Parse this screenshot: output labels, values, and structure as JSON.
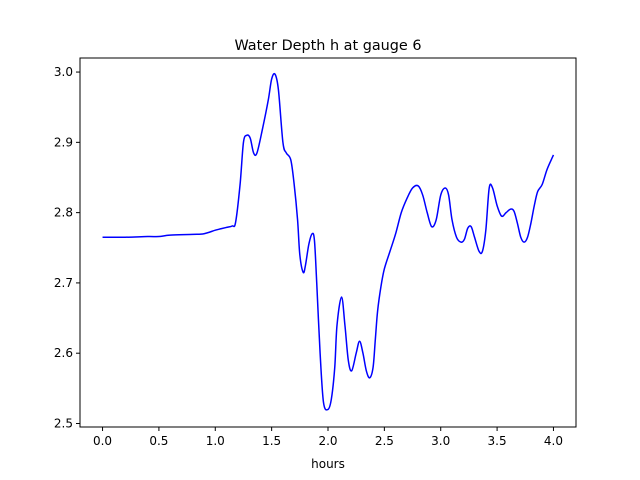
{
  "chart_data": {
    "type": "line",
    "title": "Water Depth h at gauge 6",
    "xlabel": "hours",
    "ylabel": "",
    "xlim": [
      -0.2,
      4.2
    ],
    "ylim": [
      2.495,
      3.02
    ],
    "xticks": [
      0.0,
      0.5,
      1.0,
      1.5,
      2.0,
      2.5,
      3.0,
      3.5,
      4.0
    ],
    "xtick_labels": [
      "0.0",
      "0.5",
      "1.0",
      "1.5",
      "2.0",
      "2.5",
      "3.0",
      "3.5",
      "4.0"
    ],
    "yticks": [
      2.5,
      2.6,
      2.7,
      2.8,
      2.9,
      3.0
    ],
    "ytick_labels": [
      "2.5",
      "2.6",
      "2.7",
      "2.8",
      "2.9",
      "3.0"
    ],
    "grid": false,
    "legend": "none",
    "series": [
      {
        "color": "#0000ff",
        "x": [
          0.0,
          0.2,
          0.4,
          0.5,
          0.6,
          0.8,
          0.9,
          1.0,
          1.05,
          1.1,
          1.15,
          1.18,
          1.22,
          1.25,
          1.28,
          1.31,
          1.34,
          1.37,
          1.42,
          1.47,
          1.5,
          1.53,
          1.56,
          1.6,
          1.63,
          1.67,
          1.7,
          1.73,
          1.75,
          1.78,
          1.8,
          1.83,
          1.86,
          1.88,
          1.9,
          1.93,
          1.96,
          2.0,
          2.03,
          2.06,
          2.08,
          2.12,
          2.15,
          2.18,
          2.21,
          2.25,
          2.28,
          2.31,
          2.34,
          2.37,
          2.4,
          2.42,
          2.44,
          2.47,
          2.5,
          2.55,
          2.6,
          2.65,
          2.7,
          2.75,
          2.8,
          2.84,
          2.88,
          2.92,
          2.96,
          3.0,
          3.04,
          3.07,
          3.1,
          3.14,
          3.18,
          3.21,
          3.24,
          3.27,
          3.3,
          3.34,
          3.37,
          3.4,
          3.43,
          3.46,
          3.5,
          3.54,
          3.58,
          3.62,
          3.65,
          3.68,
          3.71,
          3.74,
          3.77,
          3.8,
          3.83,
          3.86,
          3.9,
          3.94,
          3.98,
          4.0
        ],
        "y": [
          2.765,
          2.765,
          2.766,
          2.766,
          2.768,
          2.769,
          2.77,
          2.775,
          2.777,
          2.779,
          2.781,
          2.786,
          2.84,
          2.9,
          2.91,
          2.906,
          2.885,
          2.885,
          2.92,
          2.96,
          2.99,
          2.997,
          2.975,
          2.9,
          2.885,
          2.875,
          2.84,
          2.79,
          2.74,
          2.715,
          2.725,
          2.755,
          2.77,
          2.76,
          2.7,
          2.6,
          2.53,
          2.52,
          2.535,
          2.58,
          2.64,
          2.68,
          2.64,
          2.59,
          2.575,
          2.6,
          2.617,
          2.6,
          2.575,
          2.565,
          2.58,
          2.62,
          2.66,
          2.695,
          2.72,
          2.745,
          2.77,
          2.8,
          2.82,
          2.835,
          2.838,
          2.825,
          2.8,
          2.78,
          2.79,
          2.825,
          2.835,
          2.825,
          2.79,
          2.765,
          2.758,
          2.762,
          2.778,
          2.78,
          2.765,
          2.745,
          2.745,
          2.775,
          2.835,
          2.835,
          2.81,
          2.795,
          2.8,
          2.805,
          2.802,
          2.785,
          2.765,
          2.758,
          2.765,
          2.785,
          2.81,
          2.83,
          2.84,
          2.86,
          2.875,
          2.882
        ]
      }
    ]
  }
}
